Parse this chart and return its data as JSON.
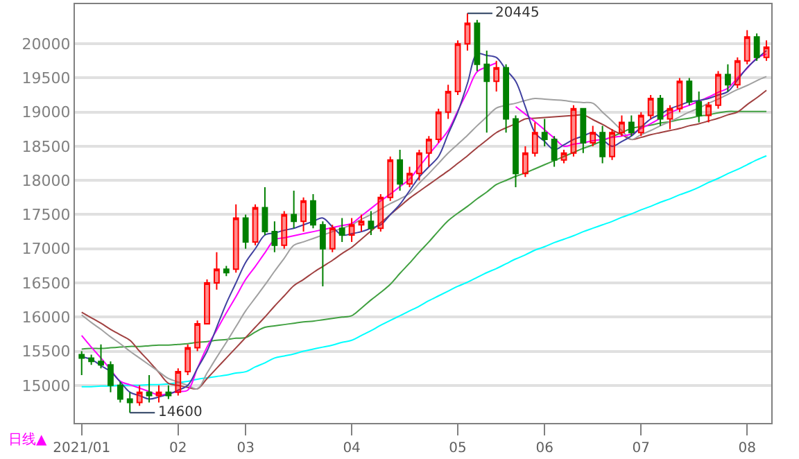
{
  "chart_data": {
    "type": "candlestick",
    "categories": [
      "2021/01",
      null,
      null,
      null,
      null,
      null,
      null,
      null,
      null,
      null,
      "02",
      null,
      null,
      null,
      null,
      null,
      null,
      "03",
      null,
      null,
      null,
      null,
      null,
      null,
      null,
      null,
      null,
      null,
      "04",
      null,
      null,
      null,
      null,
      null,
      null,
      null,
      null,
      null,
      null,
      "05",
      null,
      null,
      null,
      null,
      null,
      null,
      null,
      null,
      "06",
      null,
      null,
      null,
      null,
      null,
      null,
      null,
      null,
      null,
      "07",
      null,
      null,
      null,
      null,
      null,
      null,
      null,
      null,
      null,
      null,
      "08",
      null,
      null
    ],
    "ohlc": [
      [
        15450,
        15500,
        15150,
        15400
      ],
      [
        15400,
        15450,
        15300,
        15350
      ],
      [
        15350,
        15600,
        15250,
        15300
      ],
      [
        15300,
        15350,
        14900,
        15000
      ],
      [
        15000,
        15050,
        14750,
        14800
      ],
      [
        14800,
        14900,
        14600,
        14750
      ],
      [
        14750,
        15000,
        14700,
        14900
      ],
      [
        14900,
        15150,
        14750,
        14850
      ],
      [
        14850,
        15000,
        14750,
        14900
      ],
      [
        14900,
        15000,
        14800,
        14850
      ],
      [
        14900,
        15250,
        14850,
        15200
      ],
      [
        15200,
        15600,
        15150,
        15550
      ],
      [
        15550,
        15950,
        15500,
        15900
      ],
      [
        15900,
        16550,
        15900,
        16500
      ],
      [
        16500,
        16950,
        16400,
        16700
      ],
      [
        16700,
        16750,
        16600,
        16650
      ],
      [
        16700,
        17650,
        16650,
        17450
      ],
      [
        17450,
        17500,
        17000,
        17100
      ],
      [
        17100,
        17650,
        17050,
        17600
      ],
      [
        17600,
        17900,
        17200,
        17250
      ],
      [
        17250,
        17400,
        16950,
        17050
      ],
      [
        17050,
        17550,
        17000,
        17500
      ],
      [
        17500,
        17850,
        17300,
        17400
      ],
      [
        17400,
        17750,
        17250,
        17700
      ],
      [
        17700,
        17800,
        17300,
        17350
      ],
      [
        17350,
        17400,
        16450,
        17000
      ],
      [
        17000,
        17350,
        16950,
        17300
      ],
      [
        17300,
        17450,
        17100,
        17200
      ],
      [
        17200,
        17450,
        17100,
        17350
      ],
      [
        17350,
        17500,
        17250,
        17400
      ],
      [
        17400,
        17550,
        17200,
        17300
      ],
      [
        17300,
        17800,
        17250,
        17750
      ],
      [
        17750,
        18350,
        17700,
        18300
      ],
      [
        18300,
        18450,
        17850,
        17950
      ],
      [
        17950,
        18200,
        17900,
        18100
      ],
      [
        18100,
        18450,
        18000,
        18400
      ],
      [
        18400,
        18650,
        18200,
        18600
      ],
      [
        18600,
        19050,
        18550,
        19000
      ],
      [
        19000,
        19400,
        18900,
        19300
      ],
      [
        19300,
        20050,
        19250,
        20000
      ],
      [
        20000,
        20445,
        19900,
        20300
      ],
      [
        20300,
        20350,
        19600,
        19700
      ],
      [
        19700,
        19900,
        18700,
        19450
      ],
      [
        19450,
        19750,
        19300,
        19650
      ],
      [
        19650,
        19700,
        18700,
        18900
      ],
      [
        18900,
        18950,
        17900,
        18100
      ],
      [
        18100,
        18500,
        18050,
        18400
      ],
      [
        18400,
        18850,
        18350,
        18700
      ],
      [
        18700,
        18900,
        18500,
        18600
      ],
      [
        18600,
        18650,
        18200,
        18300
      ],
      [
        18300,
        18450,
        18250,
        18400
      ],
      [
        18400,
        19100,
        18350,
        19050
      ],
      [
        19050,
        19050,
        18400,
        18550
      ],
      [
        18550,
        18800,
        18500,
        18700
      ],
      [
        18700,
        18800,
        18250,
        18350
      ],
      [
        18350,
        18750,
        18300,
        18700
      ],
      [
        18700,
        18950,
        18650,
        18850
      ],
      [
        18850,
        18950,
        18650,
        18700
      ],
      [
        18700,
        19000,
        18650,
        18950
      ],
      [
        18950,
        19250,
        18900,
        19200
      ],
      [
        19200,
        19250,
        18800,
        18900
      ],
      [
        18900,
        19100,
        18750,
        19050
      ],
      [
        19050,
        19500,
        19000,
        19450
      ],
      [
        19450,
        19500,
        19100,
        19150
      ],
      [
        19150,
        19300,
        18850,
        18950
      ],
      [
        18950,
        19150,
        18850,
        19100
      ],
      [
        19100,
        19600,
        19050,
        19550
      ],
      [
        19550,
        19700,
        19300,
        19400
      ],
      [
        19400,
        19800,
        19350,
        19750
      ],
      [
        19750,
        20200,
        19700,
        20100
      ],
      [
        20100,
        20150,
        19750,
        19800
      ],
      [
        19800,
        20050,
        19750,
        19950
      ]
    ],
    "series": [
      {
        "type": "line",
        "color": "#00ffff",
        "values": [
          14980,
          14980,
          14990,
          14990,
          15000,
          15000,
          15000,
          15010,
          15010,
          15020,
          15040,
          15060,
          15090,
          15110,
          15130,
          15150,
          15180,
          15200,
          15270,
          15330,
          15400,
          15430,
          15460,
          15500,
          15530,
          15560,
          15590,
          15630,
          15660,
          15730,
          15800,
          15880,
          15950,
          16020,
          16090,
          16160,
          16240,
          16310,
          16380,
          16450,
          16510,
          16580,
          16650,
          16710,
          16780,
          16850,
          16910,
          16980,
          17030,
          17090,
          17140,
          17190,
          17250,
          17300,
          17350,
          17400,
          17460,
          17510,
          17570,
          17620,
          17680,
          17730,
          17790,
          17840,
          17900,
          17970,
          18030,
          18100,
          18160,
          18230,
          18300,
          18360
        ]
      },
      {
        "type": "line",
        "color": "#40a040",
        "values": [
          15530,
          15540,
          15540,
          15550,
          15560,
          15570,
          15570,
          15580,
          15590,
          15590,
          15600,
          15610,
          15630,
          15640,
          15660,
          15670,
          15690,
          15700,
          15780,
          15850,
          15870,
          15890,
          15910,
          15930,
          15940,
          15960,
          15980,
          16000,
          16020,
          16130,
          16250,
          16360,
          16480,
          16640,
          16790,
          16950,
          17100,
          17260,
          17410,
          17520,
          17620,
          17730,
          17830,
          17940,
          18000,
          18060,
          18110,
          18170,
          18230,
          18290,
          18350,
          18410,
          18470,
          18520,
          18580,
          18640,
          18700,
          18760,
          18790,
          18810,
          18840,
          18860,
          18890,
          18910,
          18940,
          18960,
          18990,
          19010,
          19010,
          19010,
          19010,
          19010
        ]
      },
      {
        "type": "line",
        "color": "#a04040",
        "values": [
          16070,
          15990,
          15910,
          15820,
          15740,
          15660,
          15500,
          15350,
          15190,
          15030,
          15000,
          14970,
          14950,
          15100,
          15250,
          15400,
          15550,
          15700,
          15850,
          16000,
          16160,
          16310,
          16460,
          16550,
          16650,
          16740,
          16830,
          16930,
          17020,
          17140,
          17260,
          17380,
          17500,
          17620,
          17740,
          17840,
          17940,
          18040,
          18140,
          18250,
          18360,
          18480,
          18590,
          18700,
          18770,
          18830,
          18900,
          18910,
          18920,
          18930,
          18940,
          18950,
          18960,
          18890,
          18820,
          18740,
          18670,
          18600,
          18630,
          18670,
          18700,
          18730,
          18760,
          18800,
          18830,
          18870,
          18910,
          18960,
          19000,
          19110,
          19210,
          19320
        ]
      },
      {
        "type": "line",
        "color": "#a0a0a0",
        "values": [
          16030,
          15920,
          15820,
          15710,
          15610,
          15500,
          15400,
          15300,
          15200,
          15100,
          15050,
          15000,
          14950,
          15180,
          15410,
          15630,
          15860,
          16090,
          16280,
          16470,
          16670,
          16860,
          17050,
          17100,
          17150,
          17200,
          17250,
          17300,
          17350,
          17430,
          17500,
          17580,
          17660,
          17730,
          17810,
          17960,
          18100,
          18250,
          18400,
          18530,
          18660,
          18800,
          18930,
          19060,
          19100,
          19130,
          19170,
          19200,
          19190,
          19180,
          19170,
          19150,
          19140,
          19130,
          19000,
          18870,
          18730,
          18600,
          18670,
          18730,
          18800,
          18860,
          18930,
          19000,
          19060,
          19130,
          19190,
          19260,
          19330,
          19390,
          19460,
          19520
        ]
      },
      {
        "type": "line",
        "color": "#ff00ff",
        "values": [
          15730,
          15560,
          15400,
          15230,
          15060,
          15010,
          14960,
          14910,
          14860,
          14880,
          14910,
          14930,
          15250,
          15560,
          15810,
          16060,
          16300,
          16550,
          16740,
          16940,
          17130,
          17160,
          17190,
          17220,
          17250,
          17280,
          17310,
          17340,
          17370,
          17480,
          17590,
          17700,
          17800,
          17910,
          18020,
          18200,
          18380,
          18550,
          18730,
          19020,
          19300,
          19590,
          19660,
          19720,
          null,
          19080,
          18970,
          18860,
          18740,
          18620,
          18500,
          18530,
          18550,
          18580,
          18600,
          18630,
          18650,
          18680,
          18760,
          18830,
          18910,
          18990,
          19050,
          19100,
          19160,
          19220,
          19290,
          19350,
          19500,
          19640,
          19790,
          19850
        ]
      },
      {
        "type": "line",
        "color": "#4040a0",
        "values": [
          15420,
          15380,
          15290,
          15200,
          15050,
          14900,
          14850,
          14800,
          14830,
          14870,
          14930,
          15000,
          15250,
          15500,
          15850,
          16200,
          16500,
          16800,
          17000,
          17200,
          17230,
          17270,
          17300,
          17350,
          17400,
          17450,
          17320,
          17200,
          17220,
          17250,
          17300,
          17350,
          17500,
          17650,
          17850,
          18050,
          18200,
          18350,
          18680,
          19000,
          19420,
          19850,
          19830,
          19800,
          19620,
          19450,
          19080,
          18700,
          18570,
          18450,
          18520,
          18600,
          18650,
          18700,
          18600,
          18500,
          18570,
          18650,
          18780,
          18900,
          18970,
          19050,
          19100,
          19150,
          19170,
          19200,
          19250,
          19300,
          19470,
          19650,
          19780,
          19900
        ]
      }
    ],
    "ylim": [
      14450,
      20580
    ],
    "yticks": [
      15000,
      15500,
      16000,
      16500,
      17000,
      17500,
      18000,
      18500,
      19000,
      19500,
      20000
    ],
    "grid": "y",
    "annotations": [
      "14600",
      "20445",
      "日线▲"
    ]
  }
}
